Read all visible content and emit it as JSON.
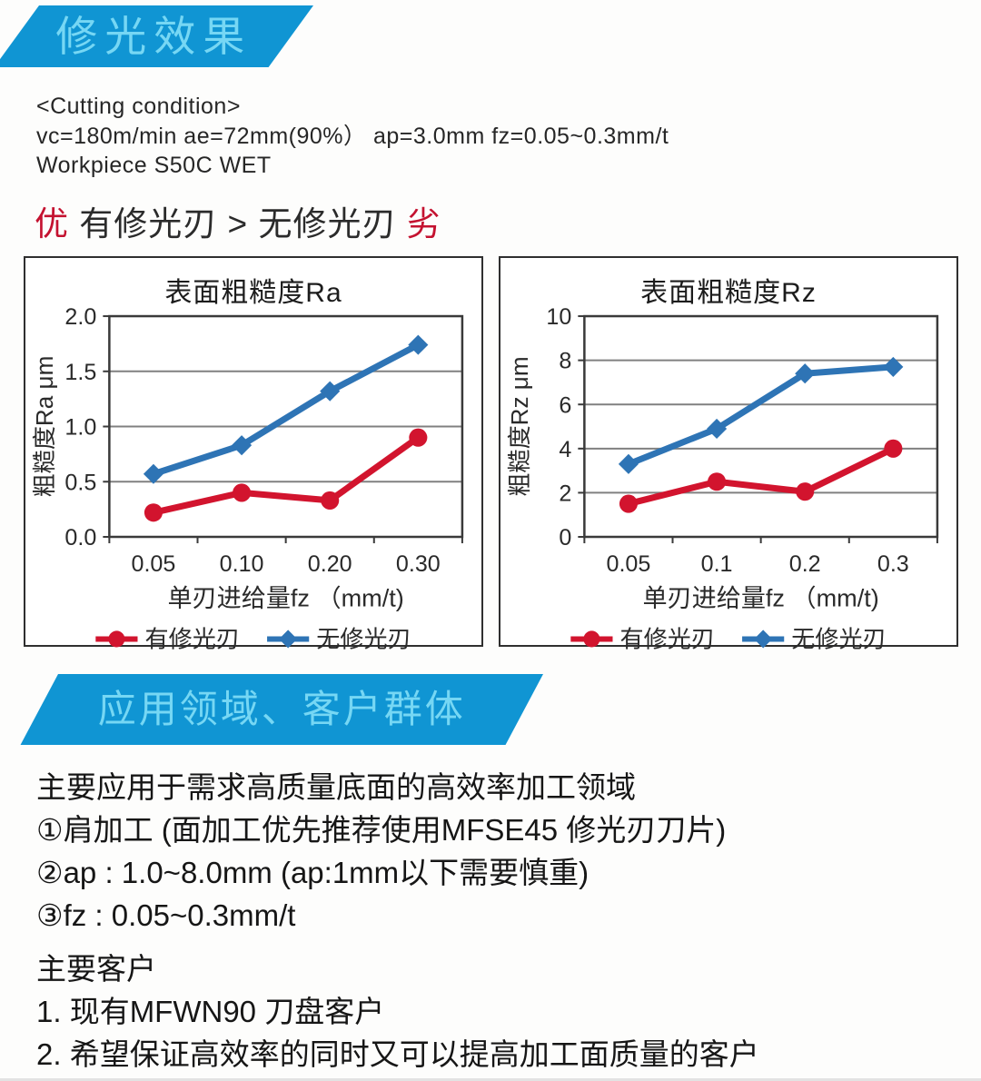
{
  "colors": {
    "banner_bg": "#1095d3",
    "banner_text": "#76d7f4",
    "accent_red": "#c41230",
    "line_red": "#d2142e",
    "line_blue": "#2e74b5",
    "grid": "#808080",
    "axis": "#3a3a3a"
  },
  "section1": {
    "title": "修光效果"
  },
  "cutting": {
    "heading": "<Cutting condition>",
    "line1": "vc=180m/min  ae=72mm(90%）  ap=3.0mm  fz=0.05~0.3mm/t",
    "line2": "Workpiece    S50C  WET"
  },
  "comparison": {
    "good_label": "优",
    "middle": "有修光刃 > 无修光刃",
    "bad_label": "劣"
  },
  "chart_data": [
    {
      "type": "line",
      "title": "表面粗糙度Ra",
      "xlabel": "单刃进给量fz （mm/t)",
      "ylabel": "粗糙度Ra μm",
      "categories": [
        "0.05",
        "0.10",
        "0.20",
        "0.30"
      ],
      "ylim": [
        0,
        2
      ],
      "yticks": [
        0,
        0.5,
        1,
        1.5,
        2
      ],
      "ytick_labels": [
        "0.0",
        "0.5",
        "1.0",
        "1.5",
        "2.0"
      ],
      "grid": true,
      "legend_position": "bottom",
      "series": [
        {
          "name": "有修光刃",
          "color": "#d2142e",
          "marker": "circle",
          "values": [
            0.22,
            0.4,
            0.33,
            0.9
          ]
        },
        {
          "name": "无修光刃",
          "color": "#2e74b5",
          "marker": "diamond",
          "values": [
            0.57,
            0.83,
            1.32,
            1.74
          ]
        }
      ]
    },
    {
      "type": "line",
      "title": "表面粗糙度Rz",
      "xlabel": "单刃进给量fz （mm/t)",
      "ylabel": "粗糙度Rz  μm",
      "categories": [
        "0.05",
        "0.1",
        "0.2",
        "0.3"
      ],
      "ylim": [
        0,
        10
      ],
      "yticks": [
        0,
        2,
        4,
        6,
        8,
        10
      ],
      "ytick_labels": [
        "0",
        "2",
        "4",
        "6",
        "8",
        "10"
      ],
      "grid": true,
      "legend_position": "bottom",
      "series": [
        {
          "name": "有修光刃",
          "color": "#d2142e",
          "marker": "circle",
          "values": [
            1.5,
            2.5,
            2.05,
            4.0
          ]
        },
        {
          "name": "无修光刃",
          "color": "#2e74b5",
          "marker": "diamond",
          "values": [
            3.3,
            4.9,
            7.4,
            7.7
          ]
        }
      ]
    }
  ],
  "section2": {
    "title": "应用领域、客户群体"
  },
  "application": {
    "intro": "主要应用于需求高质量底面的高效率加工领域",
    "items": [
      "①肩加工 (面加工优先推荐使用MFSE45 修光刃刀片)",
      "②ap : 1.0~8.0mm (ap:1mm以下需要慎重)",
      "③fz : 0.05~0.3mm/t"
    ]
  },
  "customers": {
    "heading": "主要客户",
    "items": [
      "1. 现有MFWN90 刀盘客户",
      "2. 希望保证高效率的同时又可以提高加工面质量的客户"
    ]
  }
}
